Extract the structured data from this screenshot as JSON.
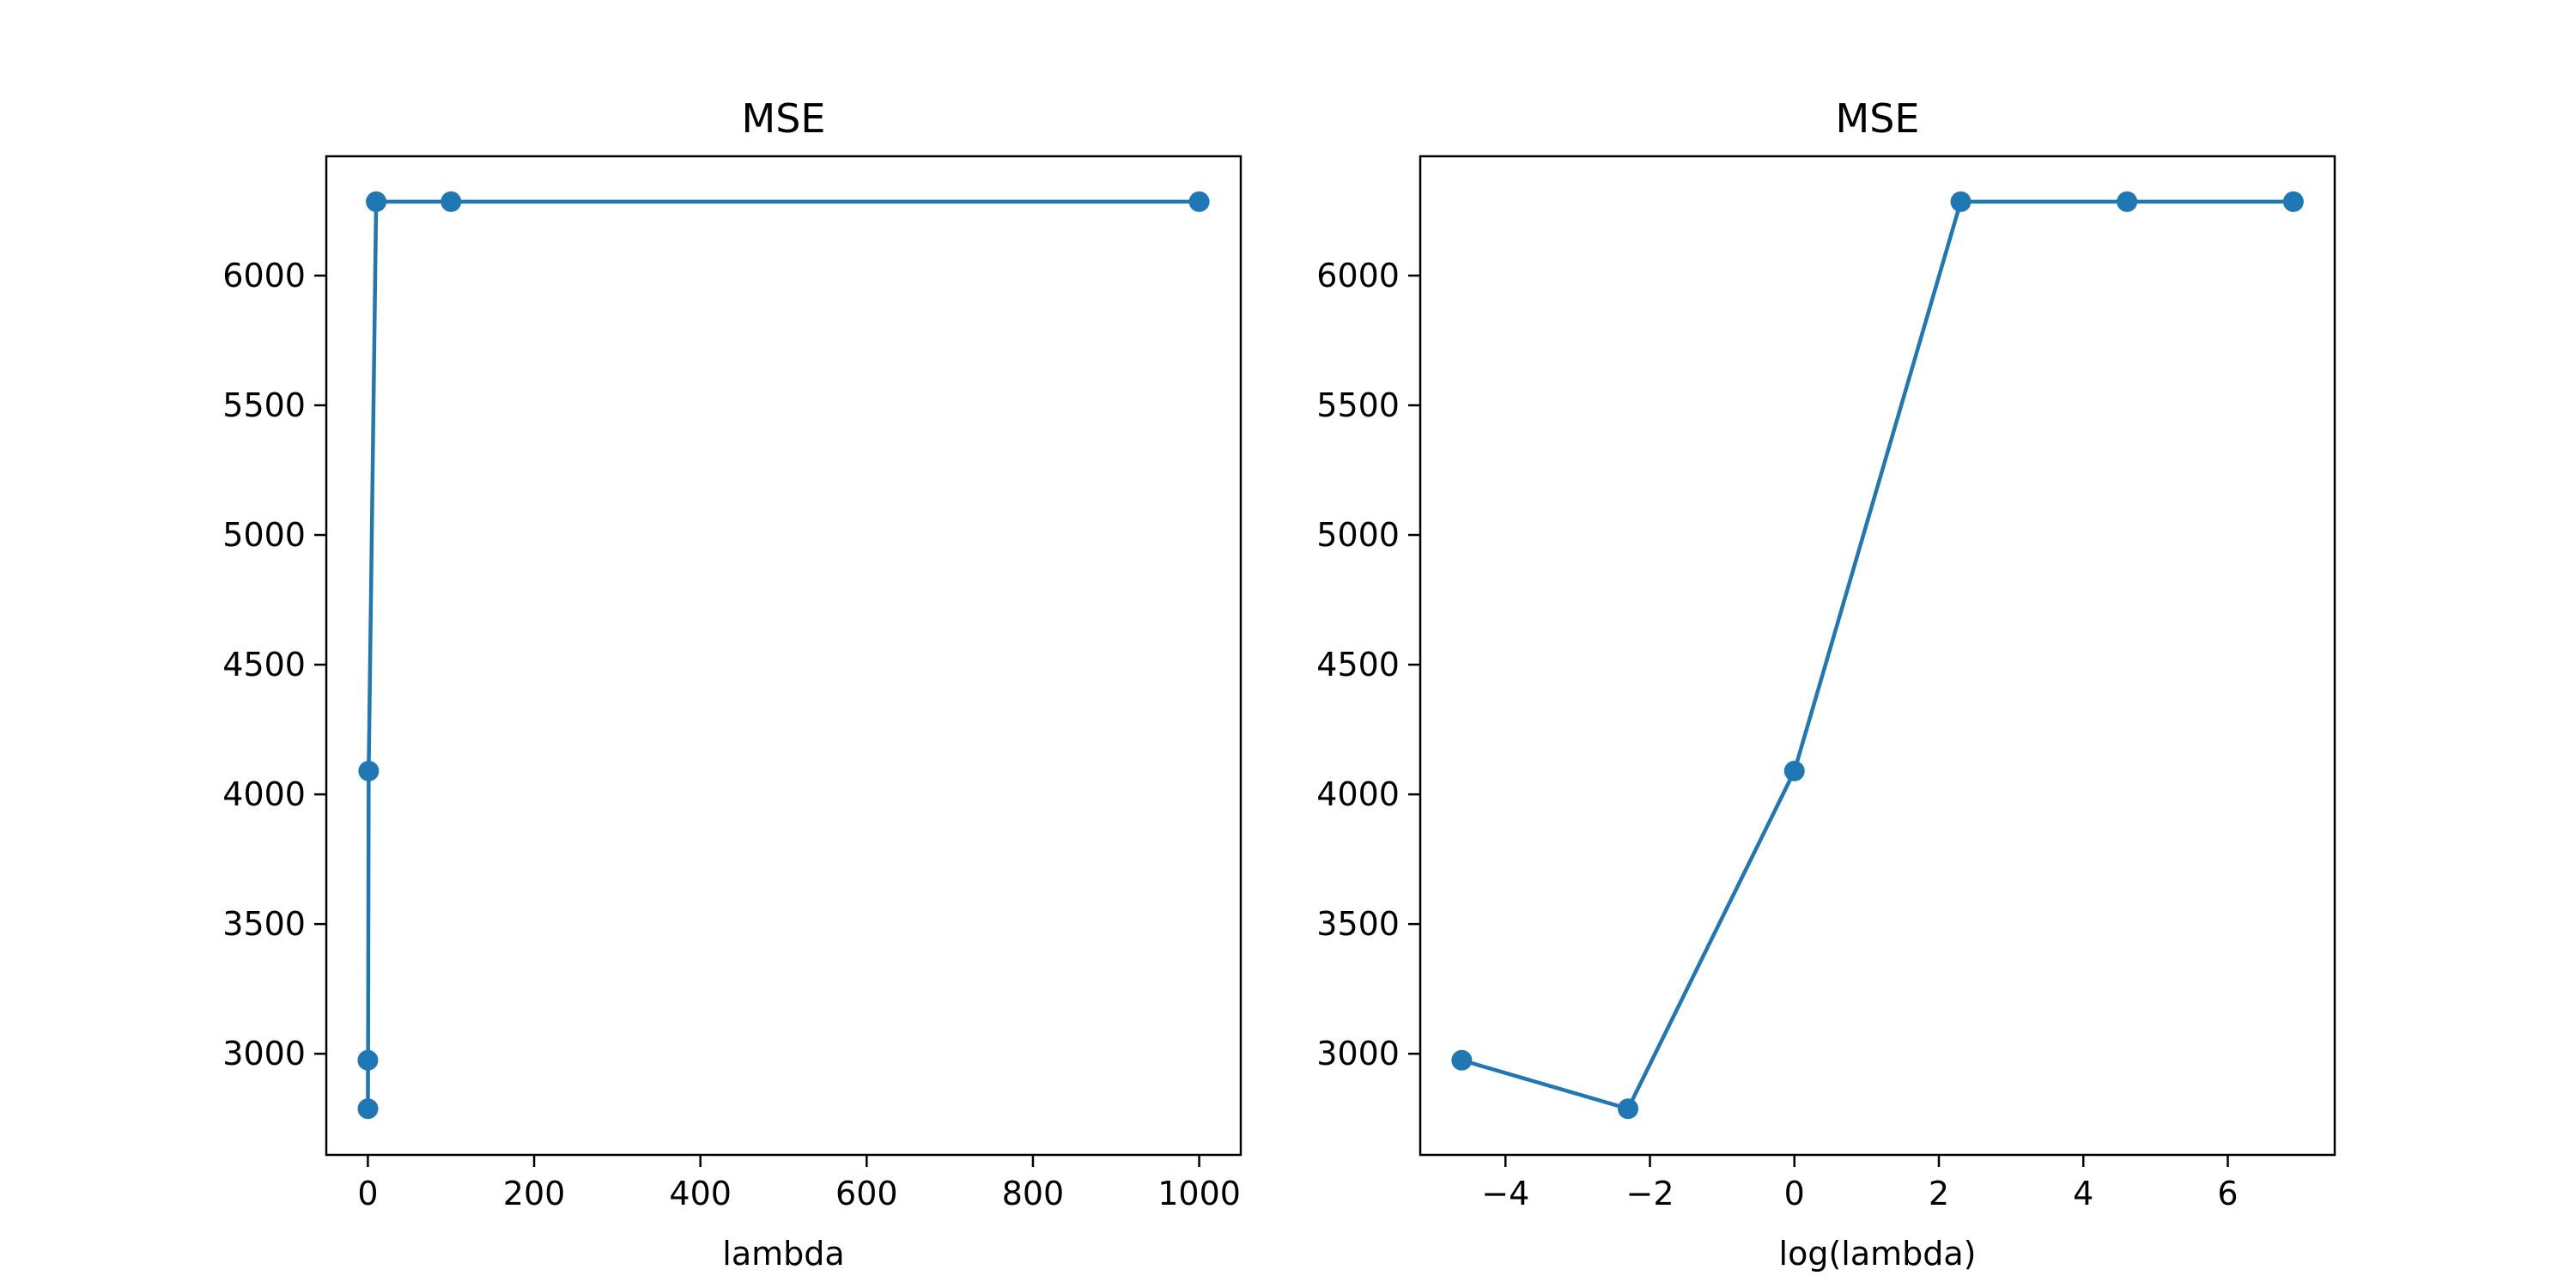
{
  "chart_data": [
    {
      "type": "line",
      "title": "MSE",
      "xlabel": "lambda",
      "ylabel": "",
      "x": [
        0.01,
        0.1,
        1,
        10,
        100,
        1000
      ],
      "series": [
        {
          "values": [
            2975,
            2788,
            4090,
            6285,
            6285,
            6285
          ]
        }
      ],
      "xlim": [
        -50,
        1050
      ],
      "ylim": [
        2610,
        6460
      ],
      "xticks": [
        0,
        200,
        400,
        600,
        800,
        1000
      ],
      "xtick_labels": [
        "0",
        "200",
        "400",
        "600",
        "800",
        "1000"
      ],
      "yticks": [
        3000,
        3500,
        4000,
        4500,
        5000,
        5500,
        6000
      ],
      "ytick_labels": [
        "3000",
        "3500",
        "4000",
        "4500",
        "5000",
        "5500",
        "6000"
      ],
      "marker": "circle",
      "grid": false,
      "color": "#1f77b4"
    },
    {
      "type": "line",
      "title": "MSE",
      "xlabel": "log(lambda)",
      "ylabel": "",
      "x": [
        -4.605,
        -2.303,
        0,
        2.303,
        4.605,
        6.908
      ],
      "series": [
        {
          "values": [
            2975,
            2788,
            4090,
            6285,
            6285,
            6285
          ]
        }
      ],
      "xlim": [
        -5.18,
        7.48
      ],
      "ylim": [
        2610,
        6460
      ],
      "xticks": [
        -4,
        -2,
        0,
        2,
        4,
        6
      ],
      "xtick_labels": [
        "−4",
        "−2",
        "0",
        "2",
        "4",
        "6"
      ],
      "yticks": [
        3000,
        3500,
        4000,
        4500,
        5000,
        5500,
        6000
      ],
      "ytick_labels": [
        "3000",
        "3500",
        "4000",
        "4500",
        "5000",
        "5500",
        "6000"
      ],
      "marker": "circle",
      "grid": false,
      "color": "#1f77b4"
    }
  ]
}
